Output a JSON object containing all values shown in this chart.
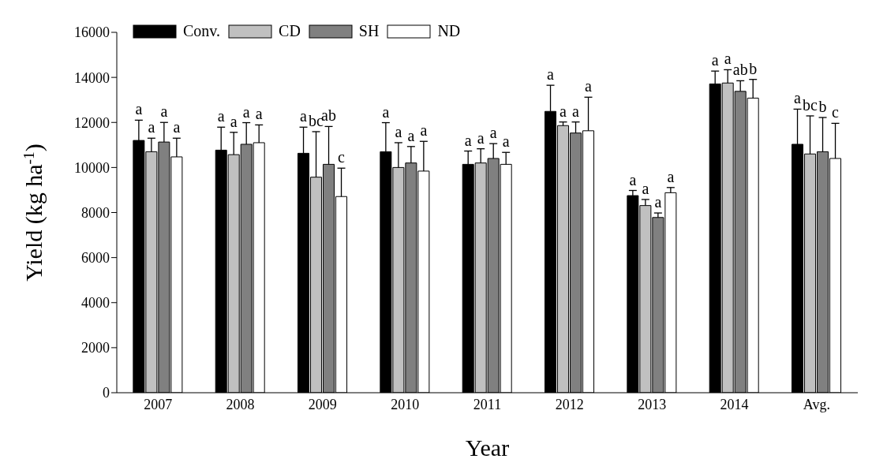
{
  "chart_data": {
    "type": "bar",
    "xlabel": "Year",
    "ylabel": "Yield (kg ha$^{-1}$)",
    "categories": [
      "2007",
      "2008",
      "2009",
      "2010",
      "2011",
      "2012",
      "2013",
      "2014",
      "Avg."
    ],
    "series": [
      {
        "name": "Conv.",
        "color": "#000000",
        "values": [
          11200,
          10770,
          10630,
          10700,
          10140,
          12490,
          8750,
          13710,
          11030
        ],
        "errors": [
          [
            11200,
            12100
          ],
          [
            10770,
            11790
          ],
          [
            10630,
            11790
          ],
          [
            10700,
            11990
          ],
          [
            10140,
            10730
          ],
          [
            12490,
            13650
          ],
          [
            8750,
            8980
          ],
          [
            13710,
            14280
          ],
          [
            11030,
            12590
          ]
        ],
        "value_labels": [
          "a",
          "a",
          "a",
          "a",
          "a",
          "a",
          "a",
          "a",
          "a"
        ]
      },
      {
        "name": "CD",
        "color": "#c0c0c0",
        "values": [
          10700,
          10570,
          9570,
          10000,
          10200,
          11860,
          8310,
          13750,
          10600
        ],
        "errors": [
          [
            10700,
            11300
          ],
          [
            10570,
            11560
          ],
          [
            9570,
            11590
          ],
          [
            10000,
            11100
          ],
          [
            10200,
            10830
          ],
          [
            11860,
            12020
          ],
          [
            8310,
            8580
          ],
          [
            13750,
            14340
          ],
          [
            10600,
            12290
          ]
        ],
        "value_labels": [
          "a",
          "a",
          "bc",
          "a",
          "a",
          "a",
          "a",
          "a",
          "bc"
        ]
      },
      {
        "name": "SH",
        "color": "#808080",
        "values": [
          11130,
          11030,
          10140,
          10200,
          10400,
          11530,
          7780,
          13380,
          10700
        ],
        "errors": [
          [
            11130,
            12000
          ],
          [
            11030,
            11990
          ],
          [
            10140,
            11820
          ],
          [
            10200,
            10930
          ],
          [
            10400,
            11060
          ],
          [
            11530,
            12020
          ],
          [
            7780,
            7980
          ],
          [
            13380,
            13850
          ],
          [
            10700,
            12220
          ]
        ],
        "value_labels": [
          "a",
          "a",
          "ab",
          "a",
          "a",
          "a",
          "a",
          "ab",
          "b"
        ]
      },
      {
        "name": "ND",
        "color": "#ffffff",
        "values": [
          10470,
          11100,
          8710,
          9840,
          10140,
          11630,
          8880,
          13080,
          10400
        ],
        "errors": [
          [
            10470,
            11300
          ],
          [
            11100,
            11890
          ],
          [
            8710,
            9970
          ],
          [
            9840,
            11160
          ],
          [
            10140,
            10670
          ],
          [
            11630,
            13120
          ],
          [
            8880,
            9110
          ],
          [
            13080,
            13910
          ],
          [
            10400,
            11960
          ]
        ],
        "value_labels": [
          "a",
          "a",
          "c",
          "a",
          "a",
          "a",
          "a",
          "b",
          "c"
        ]
      }
    ],
    "ylim": [
      0,
      16000
    ],
    "yticks": [
      0,
      2000,
      4000,
      6000,
      8000,
      10000,
      12000,
      14000,
      16000
    ],
    "legend": "top left"
  }
}
